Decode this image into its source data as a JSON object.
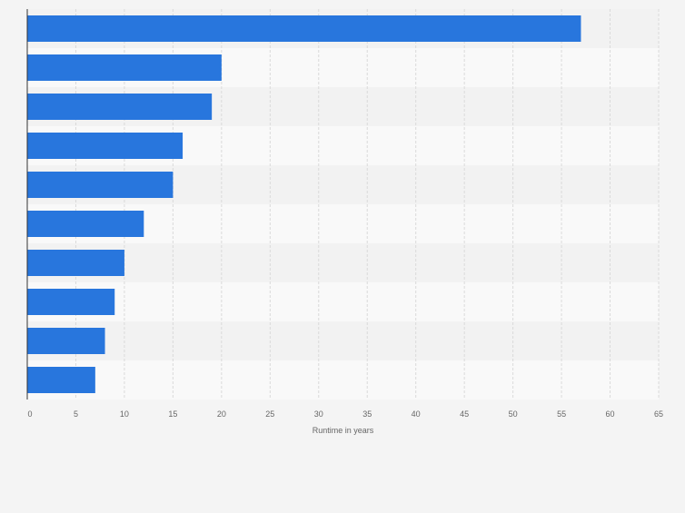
{
  "chart_data": {
    "type": "bar",
    "orientation": "horizontal",
    "title": "",
    "xlabel": "Runtime in years",
    "ylabel": "",
    "categories": [
      "",
      "",
      "",
      "",
      "",
      "",
      "",
      "",
      "",
      ""
    ],
    "values": [
      57,
      20,
      19,
      16,
      15,
      12,
      10,
      9,
      8,
      7
    ],
    "xlim": [
      0,
      65
    ],
    "xticks": [
      0,
      5,
      10,
      15,
      20,
      25,
      30,
      35,
      40,
      45,
      50,
      55,
      60,
      65
    ],
    "grid": true,
    "legend": "none"
  },
  "colors": {
    "bar": "#2876dd",
    "background": "#f4f4f4",
    "band_light": "#f9f9f9",
    "band_dark": "#f2f2f2",
    "grid": "#dadada",
    "axis": "#333333",
    "tick_text": "#666666"
  }
}
